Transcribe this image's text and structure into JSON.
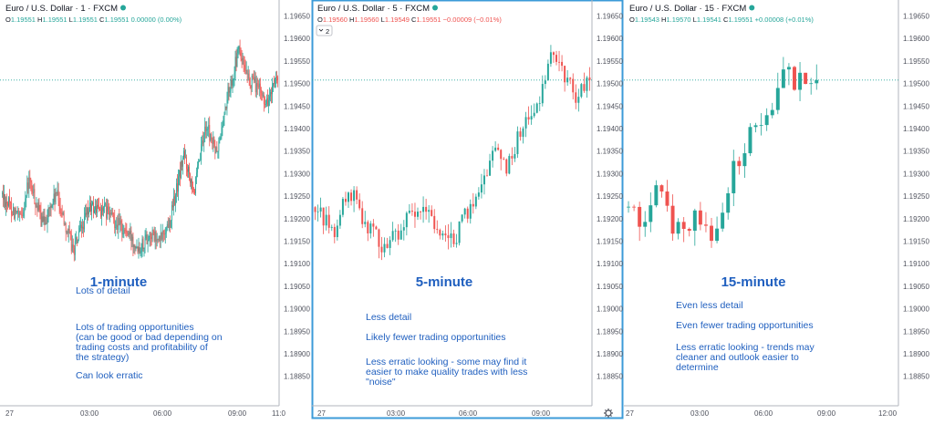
{
  "colors": {
    "up": "#26a69a",
    "down": "#ef5350",
    "annotation": "#1f5fbf",
    "active_border": "#3c9bd8",
    "axis_text": "#50535e",
    "price_line": "#26a69a"
  },
  "shared_y_ticks": [
    "1.19650",
    "1.19600",
    "1.19550",
    "1.19500",
    "1.19450",
    "1.19400",
    "1.19350",
    "1.19300",
    "1.19250",
    "1.19200",
    "1.19150",
    "1.19100",
    "1.19050",
    "1.19000",
    "1.18950",
    "1.18900",
    "1.18850"
  ],
  "chart_data": [
    {
      "type": "candlestick",
      "title": "Euro / U.S. Dollar · 1 · FXCM",
      "ohlc": {
        "o_label": "O",
        "o": "1.19551",
        "h_label": "H",
        "h": "1.19551",
        "l_label": "L",
        "l": "1.19551",
        "c_label": "C",
        "c": "1.19551",
        "change": "0.00000 (0.00%)"
      },
      "ohlc_color": "up",
      "badge": "",
      "x_ticks": [
        "27",
        "03:00",
        "06:00",
        "09:00",
        "11:0"
      ],
      "ylim": [
        1.1882,
        1.1968
      ],
      "last_price": 1.19551,
      "n_candles": 300,
      "path": [
        [
          0,
          1.1929
        ],
        [
          0.07,
          1.1923
        ],
        [
          0.1,
          1.1932
        ],
        [
          0.15,
          1.1922
        ],
        [
          0.2,
          1.1929
        ],
        [
          0.26,
          1.1916
        ],
        [
          0.32,
          1.1926
        ],
        [
          0.38,
          1.1925
        ],
        [
          0.44,
          1.1921
        ],
        [
          0.5,
          1.1917
        ],
        [
          0.54,
          1.192
        ],
        [
          0.57,
          1.1918
        ],
        [
          0.61,
          1.1923
        ],
        [
          0.66,
          1.1938
        ],
        [
          0.7,
          1.193
        ],
        [
          0.74,
          1.1945
        ],
        [
          0.78,
          1.1938
        ],
        [
          0.82,
          1.1952
        ],
        [
          0.86,
          1.1962
        ],
        [
          0.89,
          1.1955
        ],
        [
          0.92,
          1.1954
        ],
        [
          0.96,
          1.195
        ],
        [
          1,
          1.1955
        ]
      ],
      "annotation": {
        "heading": "1-minute",
        "lines": [
          "Lots of detail",
          "Lots of trading opportunities\n(can be good or bad depending on\ntrading costs and profitability of\nthe strategy)",
          "Can look erratic"
        ]
      }
    },
    {
      "type": "candlestick",
      "title": "Euro / U.S. Dollar · 5 · FXCM",
      "ohlc": {
        "o_label": "O",
        "o": "1.19560",
        "h_label": "H",
        "h": "1.19560",
        "l_label": "L",
        "l": "1.19549",
        "c_label": "C",
        "c": "1.19551",
        "change": "−0.00009 (−0.01%)"
      },
      "ohlc_color": "down",
      "badge": "2",
      "x_ticks": [
        "27",
        "03:00",
        "06:00",
        "09:00"
      ],
      "ylim": [
        1.1882,
        1.1968
      ],
      "last_price": 1.19551,
      "n_candles": 100,
      "path": [
        [
          0,
          1.1926
        ],
        [
          0.08,
          1.192
        ],
        [
          0.13,
          1.193
        ],
        [
          0.2,
          1.1922
        ],
        [
          0.26,
          1.1917
        ],
        [
          0.34,
          1.1923
        ],
        [
          0.42,
          1.1925
        ],
        [
          0.49,
          1.1917
        ],
        [
          0.53,
          1.1921
        ],
        [
          0.6,
          1.193
        ],
        [
          0.66,
          1.194
        ],
        [
          0.7,
          1.1935
        ],
        [
          0.76,
          1.1945
        ],
        [
          0.82,
          1.195
        ],
        [
          0.87,
          1.1962
        ],
        [
          0.91,
          1.1956
        ],
        [
          0.95,
          1.1952
        ],
        [
          1,
          1.1955
        ]
      ],
      "annotation": {
        "heading": "5-minute",
        "lines": [
          "Less detail",
          "Likely fewer trading opportunities",
          "Less erratic looking - some may find it\neasier to make quality trades with less\n\"noise\""
        ]
      }
    },
    {
      "type": "candlestick",
      "title": "Euro / U.S. Dollar · 15 · FXCM",
      "ohlc": {
        "o_label": "O",
        "o": "1.19543",
        "h_label": "H",
        "h": "1.19570",
        "l_label": "L",
        "l": "1.19541",
        "c_label": "C",
        "c": "1.19551",
        "change": "+0.00008 (+0.01%)"
      },
      "ohlc_color": "up",
      "badge": "",
      "x_ticks": [
        "27",
        "03:00",
        "06:00",
        "09:00",
        "12:00"
      ],
      "ylim": [
        1.1882,
        1.1968
      ],
      "last_price": 1.19551,
      "n_candles": 35,
      "extent": 0.71,
      "path": [
        [
          0,
          1.1926
        ],
        [
          0.1,
          1.1923
        ],
        [
          0.17,
          1.193
        ],
        [
          0.27,
          1.192
        ],
        [
          0.37,
          1.1924
        ],
        [
          0.45,
          1.192
        ],
        [
          0.52,
          1.1926
        ],
        [
          0.58,
          1.1935
        ],
        [
          0.66,
          1.1943
        ],
        [
          0.72,
          1.1946
        ],
        [
          0.78,
          1.1952
        ],
        [
          0.85,
          1.1957
        ],
        [
          0.9,
          1.1954
        ],
        [
          1,
          1.1955
        ]
      ],
      "annotation": {
        "heading": "15-minute",
        "lines": [
          "Even less detail",
          "Even fewer trading opportunities",
          "Less erratic looking - trends may\ncleaner and outlook easier to\ndetermine"
        ]
      }
    }
  ]
}
